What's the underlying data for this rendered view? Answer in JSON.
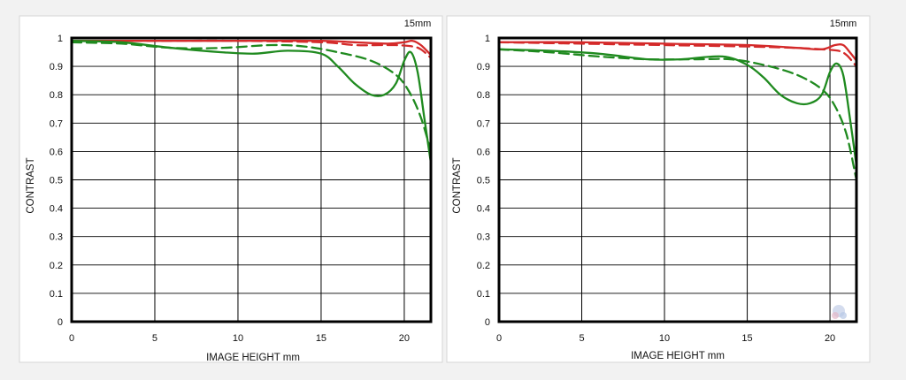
{
  "colors": {
    "red": "#d42a2a",
    "green": "#1f8a1f"
  },
  "chart_data": [
    {
      "type": "line",
      "title": "15mm",
      "xlabel": "IMAGE HEIGHT   mm",
      "ylabel": "CONTRAST",
      "xlim": [
        0,
        21.6
      ],
      "ylim": [
        0,
        1
      ],
      "x_ticks": [
        "0",
        "5",
        "10",
        "15",
        "20"
      ],
      "y_ticks": [
        "0",
        "0.1",
        "0.2",
        "0.3",
        "0.4",
        "0.5",
        "0.6",
        "0.7",
        "0.8",
        "0.9",
        "1"
      ],
      "grid": true,
      "series": [
        {
          "color": "red",
          "style": "solid",
          "x": [
            0,
            5,
            10,
            15,
            17,
            19,
            20,
            20.5,
            21,
            21.6
          ],
          "y": [
            0.99,
            0.99,
            0.99,
            0.99,
            0.985,
            0.98,
            0.985,
            0.99,
            0.975,
            0.94
          ]
        },
        {
          "color": "red",
          "style": "dashed",
          "x": [
            0,
            5,
            10,
            15,
            17,
            18.5,
            19.5,
            20.5,
            21,
            21.6
          ],
          "y": [
            0.99,
            0.99,
            0.99,
            0.985,
            0.975,
            0.975,
            0.975,
            0.97,
            0.96,
            0.93
          ]
        },
        {
          "color": "green",
          "style": "solid",
          "x": [
            0,
            3,
            6,
            9,
            11,
            13,
            15,
            16,
            17,
            18,
            18.8,
            19.5,
            20,
            20.4,
            20.8,
            21.2,
            21.6
          ],
          "y": [
            0.99,
            0.985,
            0.965,
            0.95,
            0.945,
            0.955,
            0.945,
            0.9,
            0.84,
            0.8,
            0.8,
            0.84,
            0.92,
            0.95,
            0.88,
            0.72,
            0.56
          ]
        },
        {
          "color": "green",
          "style": "dashed",
          "x": [
            0,
            3,
            6,
            9,
            12,
            14,
            16,
            18,
            19.5,
            20.3,
            21,
            21.6
          ],
          "y": [
            0.985,
            0.98,
            0.965,
            0.965,
            0.975,
            0.97,
            0.95,
            0.92,
            0.87,
            0.81,
            0.72,
            0.6
          ]
        }
      ]
    },
    {
      "type": "line",
      "title": "15mm",
      "xlabel": "IMAGE HEIGHT   mm",
      "ylabel": "CONTRAST",
      "xlim": [
        0,
        21.6
      ],
      "ylim": [
        0,
        1
      ],
      "x_ticks": [
        "0",
        "5",
        "10",
        "15",
        "20"
      ],
      "y_ticks": [
        "0",
        "0.1",
        "0.2",
        "0.3",
        "0.4",
        "0.5",
        "0.6",
        "0.7",
        "0.8",
        "0.9",
        "1"
      ],
      "grid": true,
      "series": [
        {
          "color": "red",
          "style": "solid",
          "x": [
            0,
            5,
            10,
            15,
            18,
            19.5,
            20.3,
            20.8,
            21.2,
            21.6
          ],
          "y": [
            0.985,
            0.985,
            0.98,
            0.975,
            0.965,
            0.96,
            0.975,
            0.975,
            0.95,
            0.92
          ]
        },
        {
          "color": "red",
          "style": "dashed",
          "x": [
            0,
            5,
            10,
            15,
            18,
            19.5,
            20.5,
            21,
            21.6
          ],
          "y": [
            0.985,
            0.98,
            0.975,
            0.97,
            0.965,
            0.96,
            0.955,
            0.94,
            0.9
          ]
        },
        {
          "color": "green",
          "style": "solid",
          "x": [
            0,
            3,
            6,
            9,
            11,
            13.5,
            15,
            16,
            17,
            18,
            18.8,
            19.5,
            20,
            20.4,
            20.8,
            21.2,
            21.6
          ],
          "y": [
            0.96,
            0.955,
            0.945,
            0.925,
            0.925,
            0.935,
            0.905,
            0.86,
            0.8,
            0.77,
            0.77,
            0.8,
            0.88,
            0.91,
            0.87,
            0.72,
            0.55
          ]
        },
        {
          "color": "green",
          "style": "dashed",
          "x": [
            0,
            3,
            6,
            9,
            12,
            14,
            16,
            18,
            19.5,
            20.3,
            21,
            21.6
          ],
          "y": [
            0.96,
            0.95,
            0.935,
            0.925,
            0.925,
            0.925,
            0.905,
            0.87,
            0.82,
            0.76,
            0.66,
            0.5
          ]
        }
      ]
    }
  ]
}
